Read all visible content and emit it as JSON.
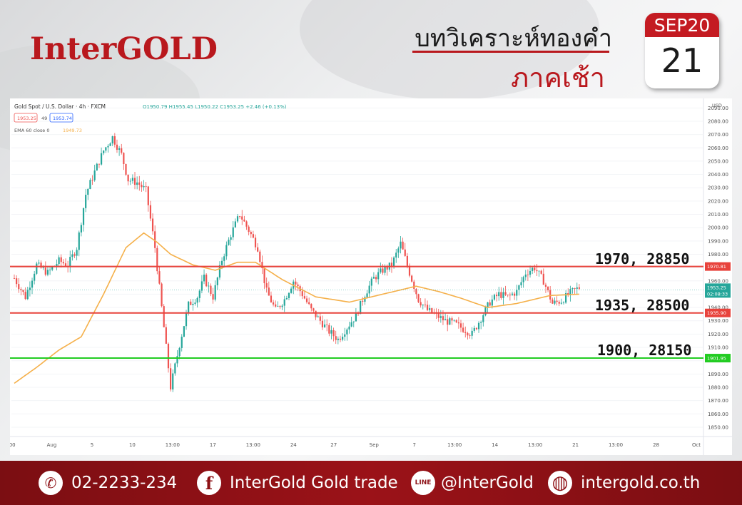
{
  "header": {
    "logo": "InterGOLD",
    "title": "บทวิเคราะห์ทองคำ",
    "subtitle": "ภาคเช้า",
    "calendar_month": "SEP20",
    "calendar_day": "21"
  },
  "chart_data": {
    "type": "candlestick",
    "title": "Gold Spot / U.S. Dollar · 4h · FXCM",
    "ohlc_text": "O1950.79  H1955.45  L1950.22  C1953.25  +2.46 (+0.13%)",
    "bid": "1953.25",
    "spread": "49",
    "ask": "1953.74",
    "indicator_name": "EMA 60 close 0",
    "indicator_value": "1949.73",
    "currency": "USD",
    "yticks": [
      "2090.00",
      "2080.00",
      "2070.00",
      "2060.00",
      "2050.00",
      "2040.00",
      "2030.00",
      "2020.00",
      "2010.00",
      "2000.00",
      "1990.00",
      "1980.00",
      "1970.00",
      "1960.00",
      "1950.00",
      "1940.00",
      "1930.00",
      "1920.00",
      "1910.00",
      "1900.00",
      "1890.00",
      "1880.00",
      "1870.00",
      "1860.00",
      "1850.00"
    ],
    "xticks": [
      ":00",
      "Aug",
      "5",
      "10",
      "13:00",
      "17",
      "13:00",
      "24",
      "27",
      "Sep",
      "7",
      "13:00",
      "14",
      "13:00",
      "21",
      "13:00",
      "28",
      "Oct"
    ],
    "ylim": [
      1843,
      2095
    ],
    "price_label": "1953.25",
    "countdown": "02:08:33",
    "levels": [
      {
        "price": 1970.81,
        "label": "1970.81",
        "color": "#e8433c",
        "annotation": "1970, 28850"
      },
      {
        "price": 1935.9,
        "label": "1935.90",
        "color": "#e8433c",
        "annotation": "1935, 28500"
      },
      {
        "price": 1901.95,
        "label": "1901.95",
        "color": "#22cc22",
        "annotation": "1900, 28150"
      }
    ],
    "price_anchors": [
      [
        0,
        1962
      ],
      [
        5,
        1948
      ],
      [
        10,
        1972
      ],
      [
        15,
        1966
      ],
      [
        20,
        1975
      ],
      [
        24,
        1972
      ],
      [
        28,
        1985
      ],
      [
        32,
        2025
      ],
      [
        36,
        2042
      ],
      [
        40,
        2058
      ],
      [
        44,
        2068
      ],
      [
        48,
        2055
      ],
      [
        51,
        2036
      ],
      [
        55,
        2034
      ],
      [
        59,
        2028
      ],
      [
        63,
        1985
      ],
      [
        67,
        1925
      ],
      [
        70,
        1880
      ],
      [
        74,
        1912
      ],
      [
        78,
        1942
      ],
      [
        82,
        1948
      ],
      [
        85,
        1962
      ],
      [
        89,
        1948
      ],
      [
        93,
        1976
      ],
      [
        97,
        1995
      ],
      [
        101,
        2010
      ],
      [
        105,
        1998
      ],
      [
        109,
        1985
      ],
      [
        113,
        1952
      ],
      [
        117,
        1938
      ],
      [
        121,
        1946
      ],
      [
        125,
        1960
      ],
      [
        129,
        1950
      ],
      [
        133,
        1938
      ],
      [
        137,
        1930
      ],
      [
        141,
        1922
      ],
      [
        145,
        1916
      ],
      [
        149,
        1925
      ],
      [
        153,
        1934
      ],
      [
        157,
        1950
      ],
      [
        161,
        1962
      ],
      [
        165,
        1968
      ],
      [
        169,
        1972
      ],
      [
        173,
        1988
      ],
      [
        177,
        1966
      ],
      [
        181,
        1946
      ],
      [
        185,
        1938
      ],
      [
        189,
        1934
      ],
      [
        193,
        1930
      ],
      [
        197,
        1928
      ],
      [
        201,
        1924
      ],
      [
        205,
        1920
      ],
      [
        209,
        1932
      ],
      [
        213,
        1944
      ],
      [
        217,
        1950
      ],
      [
        221,
        1948
      ],
      [
        225,
        1952
      ],
      [
        229,
        1966
      ],
      [
        233,
        1970
      ],
      [
        237,
        1960
      ],
      [
        241,
        1943
      ],
      [
        245,
        1945
      ],
      [
        249,
        1951
      ],
      [
        253,
        1955
      ]
    ],
    "ema_anchors": [
      [
        0,
        1883
      ],
      [
        10,
        1895
      ],
      [
        20,
        1908
      ],
      [
        30,
        1918
      ],
      [
        40,
        1950
      ],
      [
        50,
        1985
      ],
      [
        58,
        1996
      ],
      [
        64,
        1989
      ],
      [
        70,
        1980
      ],
      [
        80,
        1972
      ],
      [
        90,
        1968
      ],
      [
        100,
        1974
      ],
      [
        108,
        1974
      ],
      [
        120,
        1961
      ],
      [
        135,
        1948
      ],
      [
        150,
        1944
      ],
      [
        165,
        1950
      ],
      [
        180,
        1956
      ],
      [
        190,
        1952
      ],
      [
        200,
        1947
      ],
      [
        212,
        1940
      ],
      [
        225,
        1943
      ],
      [
        240,
        1949
      ],
      [
        253,
        1950
      ]
    ]
  },
  "footer": {
    "phone": "02-2233-234",
    "facebook": "InterGold Gold trade",
    "line": "@InterGold",
    "web": "intergold.co.th",
    "facebook_icon_glyph": "f",
    "line_icon_glyph": "LINE",
    "phone_icon_glyph": "✆",
    "web_icon_glyph": "◍"
  },
  "colors": {
    "brand_red": "#b9181d",
    "footer_red": "#8d1015",
    "candle_up": "#26a69a",
    "candle_down": "#ef5350",
    "ema": "#f5b04a",
    "level_red": "#e8433c",
    "level_green": "#22cc22"
  }
}
